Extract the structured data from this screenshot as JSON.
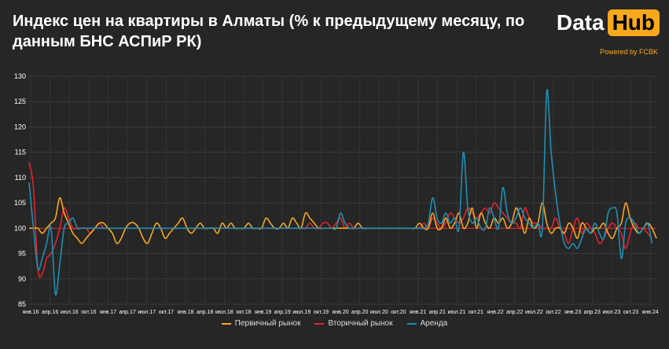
{
  "title": "Индекс цен на квартиры в Алматы (% к предыдущему месяцу, по данным БНС АСПиР РК)",
  "logo": {
    "data": "Data",
    "hub": "Hub",
    "powered": "Powered by FCBK"
  },
  "colors": {
    "primary": "#f7a81b",
    "secondary": "#e3242b",
    "rent": "#1d8fb5",
    "baseline": "#e3242b"
  },
  "chart_data": {
    "type": "line",
    "yticks": [
      85,
      90,
      95,
      100,
      105,
      110,
      115,
      120,
      125,
      130
    ],
    "ylim": [
      85,
      130
    ],
    "x_tick_labels": [
      "янв.16",
      "апр.16",
      "июл.16",
      "окт.16",
      "янв.17",
      "апр.17",
      "июл.17",
      "окт.17",
      "янв.18",
      "апр.18",
      "июл.18",
      "окт.18",
      "янв.19",
      "апр.19",
      "июл.19",
      "окт.19",
      "янв.20",
      "апр.20",
      "июл.20",
      "окт.20",
      "янв.21",
      "апр.21",
      "июл.21",
      "окт.21",
      "янв.22",
      "апр.22",
      "июл.22",
      "окт.22",
      "янв.23",
      "апр.23",
      "июл.23",
      "окт.23",
      "янв.24"
    ],
    "series": [
      {
        "name": "Первичный рынок",
        "color": "#f7a81b",
        "values": [
          100,
          100,
          100,
          99,
          100,
          101,
          102,
          106,
          103,
          101,
          99,
          98,
          97,
          98,
          99,
          100,
          101,
          101,
          100,
          99,
          97,
          98,
          100,
          101,
          101,
          100,
          98,
          97,
          99,
          101,
          100,
          98,
          99,
          100,
          101,
          102,
          100,
          99,
          100,
          101,
          100,
          100,
          100,
          99,
          101,
          100,
          101,
          100,
          100,
          100,
          101,
          100,
          100,
          100,
          102,
          101,
          100,
          100,
          101,
          100,
          102,
          101,
          100,
          103,
          102,
          101,
          100,
          100,
          100,
          100,
          100,
          100,
          100,
          100,
          100,
          101,
          100,
          100,
          100,
          100,
          100,
          100,
          100,
          100,
          100,
          100,
          100,
          100,
          100,
          101,
          100,
          100,
          103,
          100,
          100,
          102,
          100,
          101,
          103,
          100,
          101,
          104,
          100,
          103,
          101,
          100,
          102,
          101,
          102,
          100,
          101,
          104,
          102,
          99,
          102,
          100,
          101,
          105,
          101,
          99,
          100,
          100,
          99,
          101,
          100,
          98,
          101,
          100,
          99,
          100,
          100,
          101,
          99,
          98,
          100,
          101,
          105,
          102,
          100,
          99,
          100,
          101,
          100,
          98
        ]
      },
      {
        "name": "Вторичный рынок",
        "color": "#e3242b",
        "values": [
          113,
          108,
          92,
          91,
          94,
          95,
          97,
          100,
          104,
          102,
          100,
          100,
          100,
          100,
          99,
          100,
          101,
          100,
          100,
          100,
          100,
          100,
          100,
          100,
          100,
          100,
          100,
          100,
          100,
          100,
          100,
          100,
          100,
          100,
          100,
          100,
          100,
          100,
          100,
          100,
          100,
          100,
          100,
          100,
          100,
          100,
          100,
          100,
          100,
          100,
          100,
          100,
          100,
          100,
          100,
          100,
          100,
          100,
          100,
          100,
          100,
          100,
          100,
          100,
          101,
          100,
          100,
          101,
          101,
          100,
          101,
          102,
          100,
          101,
          100,
          100,
          100,
          100,
          100,
          100,
          100,
          100,
          100,
          100,
          100,
          100,
          100,
          100,
          100,
          100,
          101,
          100,
          102,
          101,
          100,
          101,
          103,
          102,
          101,
          102,
          104,
          103,
          102,
          103,
          104,
          103,
          105,
          104,
          103,
          102,
          101,
          101,
          100,
          104,
          102,
          101,
          101,
          100,
          100,
          100,
          102,
          100,
          99,
          97,
          100,
          102,
          99,
          101,
          100,
          99,
          97,
          98,
          100,
          101,
          100,
          99,
          96,
          99,
          101,
          100,
          100,
          99,
          98
        ]
      },
      {
        "name": "Аренда",
        "color": "#1d8fb5",
        "values": [
          109,
          100,
          92,
          94,
          97,
          100,
          87,
          93,
          100,
          101,
          102,
          100,
          100,
          100,
          100,
          100,
          100,
          100,
          100,
          100,
          100,
          100,
          100,
          100,
          100,
          100,
          100,
          100,
          100,
          100,
          100,
          100,
          100,
          100,
          100,
          100,
          100,
          100,
          100,
          100,
          100,
          100,
          100,
          100,
          100,
          100,
          100,
          100,
          100,
          100,
          100,
          100,
          100,
          100,
          100,
          100,
          100,
          100,
          100,
          100,
          100,
          100,
          100,
          100,
          100,
          100,
          100,
          100,
          100,
          100,
          100,
          103,
          101,
          100,
          100,
          100,
          100,
          100,
          100,
          100,
          100,
          100,
          100,
          100,
          100,
          100,
          100,
          100,
          100,
          100,
          100,
          101,
          106,
          102,
          101,
          103,
          101,
          102,
          100,
          115,
          104,
          101,
          102,
          100,
          100,
          104,
          102,
          100,
          108,
          103,
          101,
          102,
          104,
          102,
          101,
          100,
          101,
          100,
          127,
          115,
          107,
          101,
          97,
          96,
          97,
          96,
          98,
          100,
          99,
          101,
          99,
          98,
          103,
          104,
          103,
          94,
          101,
          102,
          101,
          99,
          100,
          101,
          97
        ]
      }
    ]
  },
  "legend": {
    "primary": "Первичный рынок",
    "secondary": "Вторичный рынок",
    "rent": "Аренда"
  }
}
